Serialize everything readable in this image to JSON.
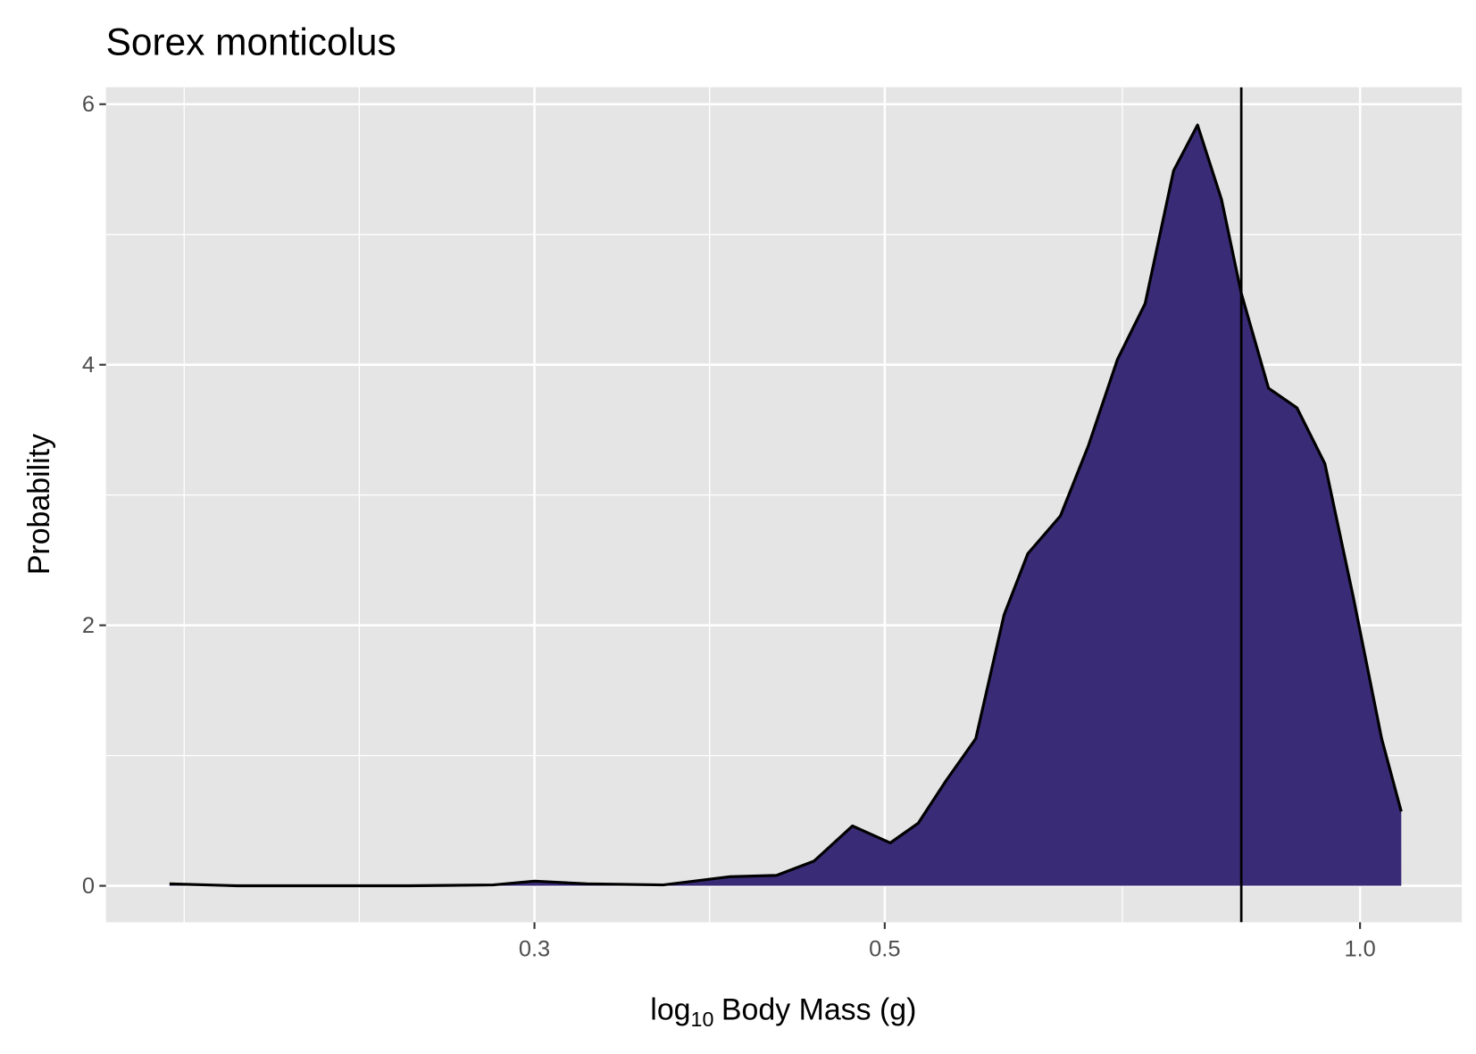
{
  "chart_data": {
    "type": "density",
    "title": "Sorex monticolus",
    "x_label": [
      "log",
      "10",
      "Body Mass (g)"
    ],
    "y_label": "Probability",
    "log_x": true,
    "grid": true,
    "x": [
      0.1762,
      0.1946,
      0.2495,
      0.2825,
      0.3,
      0.324,
      0.362,
      0.399,
      0.427,
      0.451,
      0.477,
      0.504,
      0.525,
      0.547,
      0.571,
      0.595,
      0.616,
      0.646,
      0.673,
      0.702,
      0.731,
      0.762,
      0.789,
      0.817,
      0.841,
      0.875,
      0.912,
      0.95,
      0.99,
      1.032,
      1.062
    ],
    "series": [
      {
        "color": "#3a2b76",
        "values": [
          0.015,
          0,
          0,
          0.007,
          0.036,
          0.015,
          0.007,
          0.07,
          0.08,
          0.19,
          0.46,
          0.33,
          0.48,
          0.81,
          1.13,
          2.08,
          2.55,
          2.84,
          3.38,
          4.04,
          4.47,
          5.49,
          5.84,
          5.27,
          4.55,
          3.82,
          3.67,
          3.24,
          2.22,
          1.13,
          0.57
        ]
      }
    ],
    "vline": 0.841,
    "xlim": [
      0.1606,
      1.16
    ],
    "ylim": [
      -0.28,
      6.13
    ],
    "xticks": [
      0.3,
      0.5,
      {
        "value": 1,
        "label": "1.0"
      }
    ],
    "yticks": [
      0,
      2,
      4,
      6
    ]
  }
}
